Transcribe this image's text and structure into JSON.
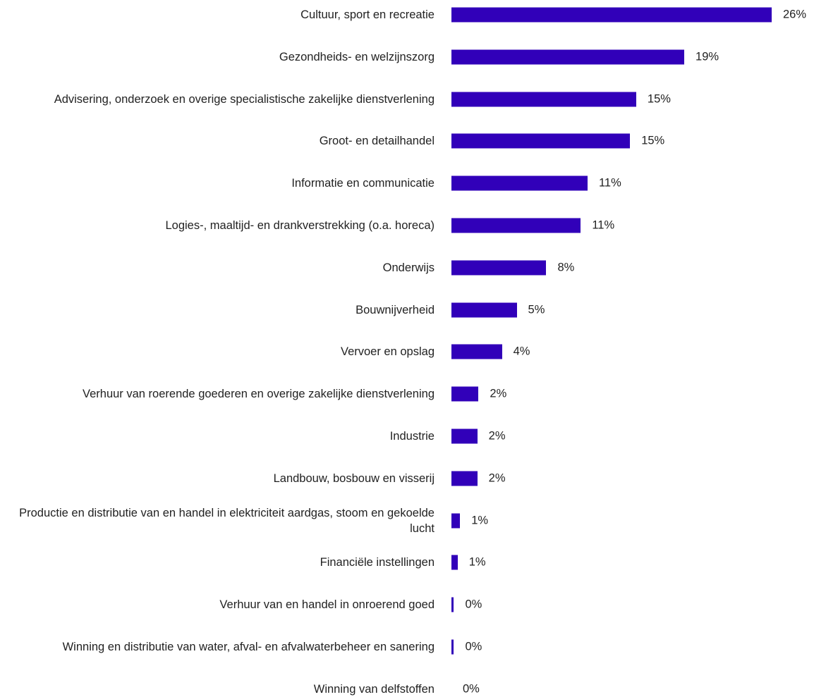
{
  "chart_data": {
    "type": "hbar",
    "categories": [
      "Cultuur, sport en recreatie",
      "Gezondheids- en welzijnszorg",
      "Advisering, onderzoek en overige specialistische zakelijke dienstverlening",
      "Groot- en detailhandel",
      "Informatie en communicatie",
      "Logies-, maaltijd- en drankverstrekking (o.a. horeca)",
      "Onderwijs",
      "Bouwnijverheid",
      "Vervoer en opslag",
      "Verhuur van roerende goederen en overige zakelijke dienstverlening",
      "Industrie",
      "Landbouw, bosbouw en visserij",
      "Productie en distributie van en handel in elektriciteit aardgas, stoom en gekoelde lucht",
      "Financiële instellingen",
      "Verhuur van en handel in onroerend goed",
      "Winning en distributie van water, afval- en afvalwaterbeheer en sanering",
      "Winning van delfstoffen"
    ],
    "values": [
      26,
      18.9,
      15.0,
      14.5,
      11.05,
      10.5,
      7.7,
      5.3,
      4.1,
      2.2,
      2.1,
      2.1,
      0.7,
      0.5,
      0.2,
      0.2,
      0
    ],
    "value_labels": [
      "26%",
      "19%",
      "15%",
      "15%",
      "11%",
      "11%",
      "8%",
      "5%",
      "4%",
      "2%",
      "2%",
      "2%",
      "1%",
      "1%",
      "0%",
      "0%",
      "0%"
    ],
    "color": "#3100b9",
    "xlim": [
      0,
      26
    ]
  }
}
